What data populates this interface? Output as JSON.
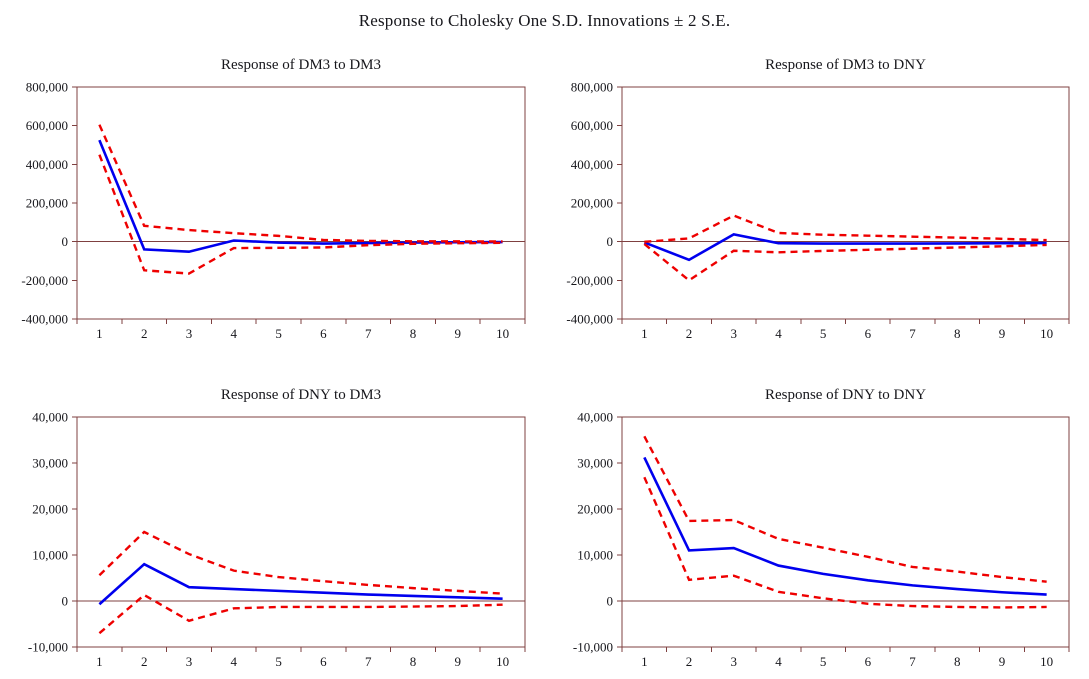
{
  "figure": {
    "title": "Response to Cholesky One S.D. Innovations ± 2 S.E."
  },
  "colors": {
    "response_line": "#0000ee",
    "band_line": "#ee0000",
    "axis_frame": "#7f4040",
    "text": "#17171c",
    "background": "#ffffff"
  },
  "chart_data": [
    {
      "id": "response-of-dm3-to-dm3",
      "type": "line",
      "title": "Response of DM3 to DM3",
      "grid_position": "top-left",
      "x": [
        1,
        2,
        3,
        4,
        5,
        6,
        7,
        8,
        9,
        10
      ],
      "xlabel": "",
      "ylabel": "",
      "ylim": [
        -400000,
        800000
      ],
      "yticks": [
        800000,
        600000,
        400000,
        200000,
        0,
        -200000,
        -400000
      ],
      "zero_line": true,
      "grid": false,
      "legend": "none",
      "series": [
        {
          "name": "response",
          "line": "solid",
          "color": "#0000ee",
          "values": [
            525000,
            -40000,
            -52000,
            6000,
            -5000,
            -10000,
            -7000,
            -5000,
            -3000,
            -2000
          ]
        },
        {
          "name": "upper-2se-band",
          "line": "dashed",
          "color": "#ee0000",
          "values": [
            605000,
            82000,
            60000,
            44000,
            30000,
            9000,
            4000,
            2000,
            1500,
            1000
          ]
        },
        {
          "name": "lower-2se-band",
          "line": "dashed",
          "color": "#ee0000",
          "values": [
            450000,
            -148000,
            -165000,
            -33000,
            -32000,
            -30000,
            -18000,
            -11000,
            -8000,
            -6000
          ]
        }
      ]
    },
    {
      "id": "response-of-dm3-to-dny",
      "type": "line",
      "title": "Response of DM3 to DNY",
      "grid_position": "top-right",
      "x": [
        1,
        2,
        3,
        4,
        5,
        6,
        7,
        8,
        9,
        10
      ],
      "xlabel": "",
      "ylabel": "",
      "ylim": [
        -400000,
        800000
      ],
      "yticks": [
        800000,
        600000,
        400000,
        200000,
        0,
        -200000,
        -400000
      ],
      "zero_line": true,
      "grid": false,
      "legend": "none",
      "series": [
        {
          "name": "response",
          "line": "solid",
          "color": "#0000ee",
          "values": [
            -4000,
            -94000,
            38000,
            -8000,
            -10000,
            -10000,
            -10000,
            -9000,
            -8000,
            -7000
          ]
        },
        {
          "name": "upper-2se-band",
          "line": "dashed",
          "color": "#ee0000",
          "values": [
            -1000,
            17000,
            135000,
            45000,
            36000,
            31000,
            26000,
            21000,
            15000,
            8000
          ]
        },
        {
          "name": "lower-2se-band",
          "line": "dashed",
          "color": "#ee0000",
          "values": [
            -12000,
            -200000,
            -47000,
            -55000,
            -48000,
            -42000,
            -36000,
            -30000,
            -24000,
            -17000
          ]
        }
      ]
    },
    {
      "id": "response-of-dny-to-dm3",
      "type": "line",
      "title": "Response of DNY to DM3",
      "grid_position": "bottom-left",
      "x": [
        1,
        2,
        3,
        4,
        5,
        6,
        7,
        8,
        9,
        10
      ],
      "xlabel": "",
      "ylabel": "",
      "ylim": [
        -10000,
        40000
      ],
      "yticks": [
        40000,
        30000,
        20000,
        10000,
        0,
        -10000
      ],
      "zero_line": true,
      "grid": false,
      "legend": "none",
      "series": [
        {
          "name": "response",
          "line": "solid",
          "color": "#0000ee",
          "values": [
            -700,
            8000,
            3000,
            2600,
            2200,
            1800,
            1400,
            1100,
            800,
            500
          ]
        },
        {
          "name": "upper-2se-band",
          "line": "dashed",
          "color": "#ee0000",
          "values": [
            5600,
            15000,
            10200,
            6600,
            5200,
            4300,
            3500,
            2800,
            2200,
            1600
          ]
        },
        {
          "name": "lower-2se-band",
          "line": "dashed",
          "color": "#ee0000",
          "values": [
            -7000,
            1300,
            -4300,
            -1600,
            -1300,
            -1300,
            -1300,
            -1200,
            -1100,
            -800
          ]
        }
      ]
    },
    {
      "id": "response-of-dny-to-dny",
      "type": "line",
      "title": "Response of DNY to DNY",
      "grid_position": "bottom-right",
      "x": [
        1,
        2,
        3,
        4,
        5,
        6,
        7,
        8,
        9,
        10
      ],
      "xlabel": "",
      "ylabel": "",
      "ylim": [
        -10000,
        40000
      ],
      "yticks": [
        40000,
        30000,
        20000,
        10000,
        0,
        -10000
      ],
      "zero_line": true,
      "grid": false,
      "legend": "none",
      "series": [
        {
          "name": "response",
          "line": "solid",
          "color": "#0000ee",
          "values": [
            31200,
            11000,
            11500,
            7700,
            5900,
            4500,
            3400,
            2600,
            1900,
            1400
          ]
        },
        {
          "name": "upper-2se-band",
          "line": "dashed",
          "color": "#ee0000",
          "values": [
            35800,
            17400,
            17600,
            13500,
            11600,
            9600,
            7400,
            6400,
            5200,
            4200
          ]
        },
        {
          "name": "lower-2se-band",
          "line": "dashed",
          "color": "#ee0000",
          "values": [
            26900,
            4600,
            5500,
            2000,
            600,
            -600,
            -1100,
            -1300,
            -1400,
            -1300
          ]
        }
      ]
    }
  ]
}
